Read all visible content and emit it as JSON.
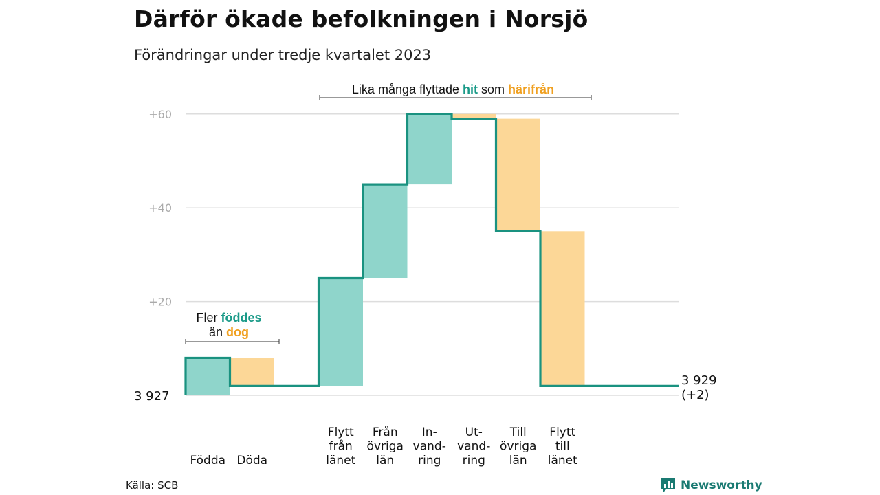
{
  "title": "Därför ökade befolkningen i Norsjö",
  "subtitle": "Förändringar under tredje kvartalet 2023",
  "source": "Källa: SCB",
  "brand": "Newsworthy",
  "colors": {
    "teal": "#8fd5cb",
    "orange": "#fcd797",
    "line": "#1a9280",
    "teal_text": "#1a9a88",
    "orange_text": "#f0a020",
    "grid": "#dddddd",
    "tick": "#aaaaaa"
  },
  "chart_data": {
    "type": "waterfall",
    "start_label": "3  927",
    "end_label": [
      "3 929",
      "(+2)"
    ],
    "y_ticks": [
      {
        "value": 20,
        "label": "+20"
      },
      {
        "value": 40,
        "label": "+40"
      },
      {
        "value": 60,
        "label": "+60"
      }
    ],
    "ylim": [
      0,
      60
    ],
    "steps": [
      {
        "label": [
          "Födda"
        ],
        "from": 0,
        "to": 8,
        "kind": "in"
      },
      {
        "label": [
          "Döda"
        ],
        "from": 8,
        "to": 2,
        "kind": "out"
      },
      {
        "label": [],
        "from": 2,
        "to": 2,
        "kind": "none"
      },
      {
        "label": [
          "Flytt",
          "från",
          "länet"
        ],
        "from": 2,
        "to": 25,
        "kind": "in"
      },
      {
        "label": [
          "Från",
          "övriga",
          "län"
        ],
        "from": 25,
        "to": 45,
        "kind": "in"
      },
      {
        "label": [
          "In-",
          "vand-",
          "ring"
        ],
        "from": 45,
        "to": 60,
        "kind": "in"
      },
      {
        "label": [
          "Ut-",
          "vand-",
          "ring"
        ],
        "from": 60,
        "to": 59,
        "kind": "out"
      },
      {
        "label": [
          "Till",
          "övriga",
          "län"
        ],
        "from": 59,
        "to": 35,
        "kind": "out"
      },
      {
        "label": [
          "Flytt",
          "till",
          "länet"
        ],
        "from": 35,
        "to": 2,
        "kind": "out"
      },
      {
        "label": [],
        "from": 2,
        "to": 2,
        "kind": "none"
      }
    ],
    "annotations": [
      {
        "lines": [
          [
            {
              "t": "Fler ",
              "c": "plain"
            },
            {
              "t": "föddes",
              "c": "teal"
            }
          ],
          [
            {
              "t": "än ",
              "c": "plain"
            },
            {
              "t": "dog",
              "c": "orange"
            }
          ]
        ]
      },
      {
        "lines": [
          [
            {
              "t": "Lika många flyttade ",
              "c": "plain"
            },
            {
              "t": "hit",
              "c": "teal"
            },
            {
              "t": "  som ",
              "c": "plain"
            },
            {
              "t": "härifrån",
              "c": "orange"
            }
          ]
        ]
      }
    ]
  }
}
